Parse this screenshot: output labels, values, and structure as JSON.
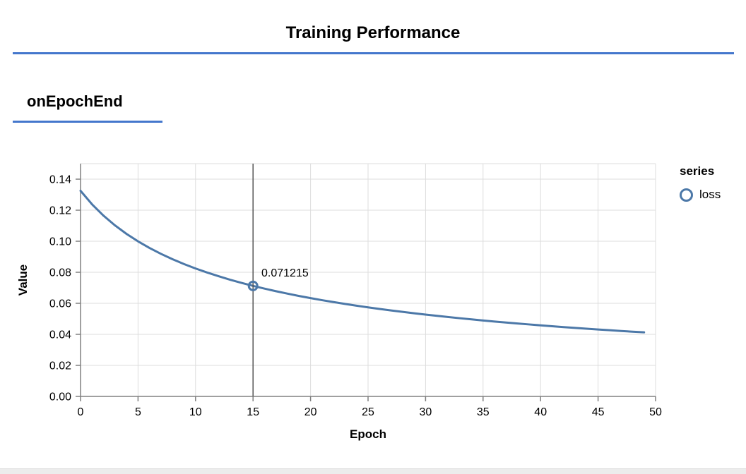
{
  "page": {
    "title": "Training Performance",
    "section_heading": "onEpochEnd"
  },
  "chart_data": {
    "type": "line",
    "title": "onEpochEnd",
    "xlabel": "Epoch",
    "ylabel": "Value",
    "xlim": [
      0,
      50
    ],
    "ylim": [
      0,
      0.15
    ],
    "x_ticks": [
      0,
      5,
      10,
      15,
      20,
      25,
      30,
      35,
      40,
      45,
      50
    ],
    "y_ticks": [
      0.0,
      0.02,
      0.04,
      0.06,
      0.08,
      0.1,
      0.12,
      0.14
    ],
    "grid": true,
    "legend": {
      "title": "series",
      "position": "right",
      "entries": [
        {
          "label": "loss",
          "marker": "open-circle",
          "color": "#4c78a8"
        }
      ]
    },
    "series": [
      {
        "name": "loss",
        "color": "#4c78a8",
        "x": [
          0,
          1,
          2,
          3,
          4,
          5,
          6,
          7,
          8,
          9,
          10,
          11,
          12,
          13,
          14,
          15,
          16,
          17,
          18,
          19,
          20,
          21,
          22,
          23,
          24,
          25,
          26,
          27,
          28,
          29,
          30,
          31,
          32,
          33,
          34,
          35,
          36,
          37,
          38,
          39,
          40,
          41,
          42,
          43,
          44,
          45,
          46,
          47,
          48,
          49
        ],
        "values": [
          0.13249,
          0.1238,
          0.11647,
          0.11019,
          0.10472,
          0.09992,
          0.09566,
          0.09184,
          0.0884,
          0.08529,
          0.08244,
          0.07984,
          0.07745,
          0.07522,
          0.07317,
          0.071215,
          0.06946,
          0.06779,
          0.06622,
          0.06473,
          0.06334,
          0.06202,
          0.06078,
          0.05959,
          0.05847,
          0.0574,
          0.05637,
          0.0554,
          0.05447,
          0.05358,
          0.05273,
          0.05191,
          0.05112,
          0.05037,
          0.04964,
          0.04894,
          0.04826,
          0.04762,
          0.04699,
          0.04639,
          0.0458,
          0.04523,
          0.04468,
          0.04415,
          0.04364,
          0.04314,
          0.04265,
          0.04218,
          0.04172,
          0.04128
        ]
      }
    ],
    "hover_point": {
      "epoch": 15,
      "value": 0.071215,
      "label": "0.071215"
    }
  },
  "colors": {
    "accent_rule": "#4477cc",
    "series_line": "#4c78a8",
    "grid": "#dddddd",
    "axis": "#808080",
    "hover_rule": "#555555",
    "text": "#000000",
    "footer_bar": "#ececec"
  }
}
